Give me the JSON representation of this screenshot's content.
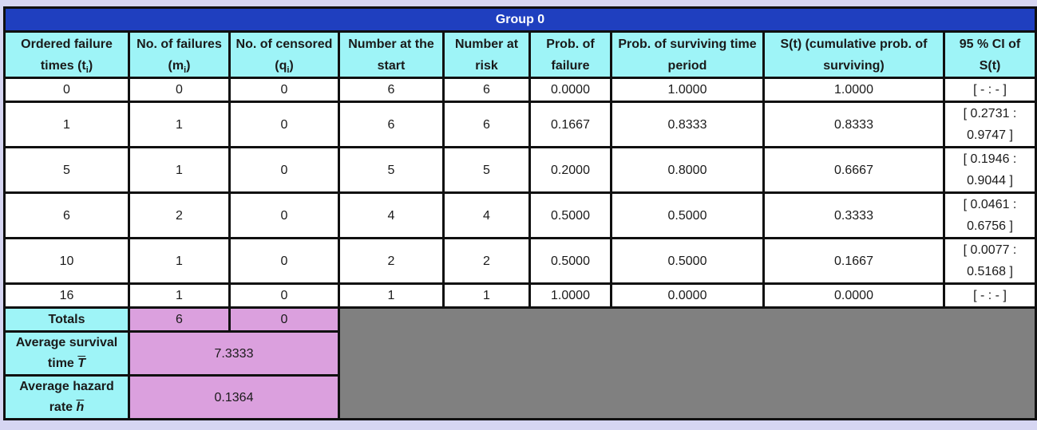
{
  "table": {
    "title": "Group 0",
    "headers": [
      {
        "text": "Ordered failure times (t",
        "sub": "i",
        "close": ")"
      },
      {
        "text": "No. of failures (m",
        "sub": "i",
        "close": ")"
      },
      {
        "text": "No. of censored (q",
        "sub": "i",
        "close": ")"
      },
      {
        "text": "Number at the start",
        "sub": "",
        "close": ""
      },
      {
        "text": "Number at risk",
        "sub": "",
        "close": ""
      },
      {
        "text": "Prob. of failure",
        "sub": "",
        "close": ""
      },
      {
        "text": "Prob. of surviving time period",
        "sub": "",
        "close": ""
      },
      {
        "text": "S(t) (cumulative prob. of surviving)",
        "sub": "",
        "close": ""
      },
      {
        "text": "95 % CI of S(t)",
        "sub": "",
        "close": ""
      }
    ],
    "rows": [
      {
        "t": "0",
        "m": "0",
        "q": "0",
        "start": "6",
        "risk": "6",
        "pf": "0.0000",
        "ps": "1.0000",
        "st": "1.0000",
        "ci1": "[ - : - ]",
        "ci2": ""
      },
      {
        "t": "1",
        "m": "1",
        "q": "0",
        "start": "6",
        "risk": "6",
        "pf": "0.1667",
        "ps": "0.8333",
        "st": "0.8333",
        "ci1": "[ 0.2731 :",
        "ci2": "0.9747 ]"
      },
      {
        "t": "5",
        "m": "1",
        "q": "0",
        "start": "5",
        "risk": "5",
        "pf": "0.2000",
        "ps": "0.8000",
        "st": "0.6667",
        "ci1": "[ 0.1946 :",
        "ci2": "0.9044 ]"
      },
      {
        "t": "6",
        "m": "2",
        "q": "0",
        "start": "4",
        "risk": "4",
        "pf": "0.5000",
        "ps": "0.5000",
        "st": "0.3333",
        "ci1": "[ 0.0461 :",
        "ci2": "0.6756 ]"
      },
      {
        "t": "10",
        "m": "1",
        "q": "0",
        "start": "2",
        "risk": "2",
        "pf": "0.5000",
        "ps": "0.5000",
        "st": "0.1667",
        "ci1": "[ 0.0077 :",
        "ci2": "0.5168 ]"
      },
      {
        "t": "16",
        "m": "1",
        "q": "0",
        "start": "1",
        "risk": "1",
        "pf": "1.0000",
        "ps": "0.0000",
        "st": "0.0000",
        "ci1": "[ - : - ]",
        "ci2": ""
      }
    ],
    "summary": {
      "totals_label": "Totals",
      "totals_failures": "6",
      "totals_censored": "0",
      "avg_survival_label": "Average survival time",
      "avg_survival_symbol": "T",
      "avg_survival_value": "7.3333",
      "avg_hazard_label": "Average hazard rate",
      "avg_hazard_symbol": "h",
      "avg_hazard_value": "0.1364"
    }
  },
  "colors": {
    "title_bg": "#1f3fbf",
    "header_bg": "#9ef4f7",
    "summary_bg": "#dba0de",
    "empty_bg": "#808080",
    "page_bg": "#d6d6f2"
  }
}
